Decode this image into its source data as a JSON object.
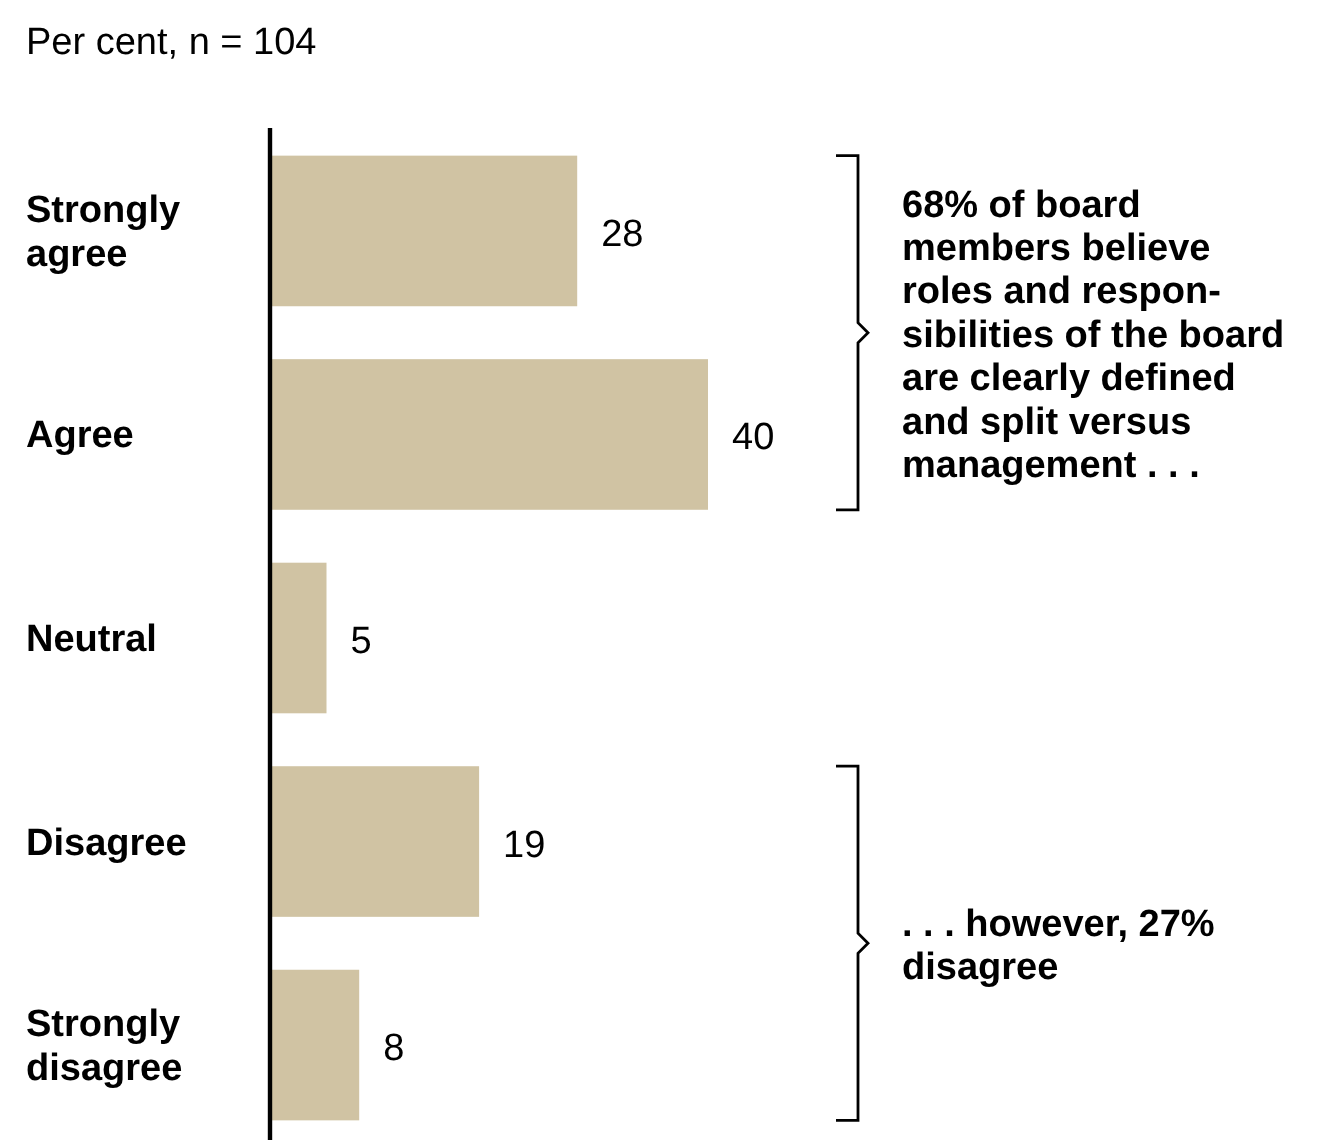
{
  "chart_data": {
    "type": "bar",
    "orientation": "horizontal",
    "subtitle": "Per cent, n = 104",
    "categories": [
      "Strongly agree",
      "Agree",
      "Neutral",
      "Disagree",
      "Strongly disagree"
    ],
    "values": [
      28,
      40,
      5,
      19,
      8
    ],
    "color": "#d0c3a3",
    "data_labels": true,
    "annotations": [
      "68% of board\nmembers believe\nroles and respon-\nsibilities of the board\nare clearly defined\nand split versus\nmanagement . . .",
      ". . . however, 27%\ndisagree"
    ]
  }
}
